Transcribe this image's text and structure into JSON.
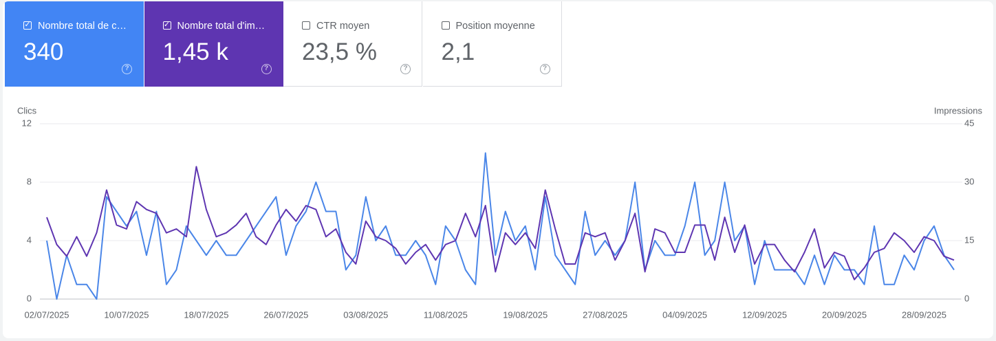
{
  "cards": [
    {
      "label": "Nombre total de c…",
      "value": "340",
      "checked": true,
      "color": "#4285f4"
    },
    {
      "label": "Nombre total d'im…",
      "value": "1,45 k",
      "checked": true,
      "color": "#5e35b1"
    },
    {
      "label": "CTR moyen",
      "value": "23,5 %",
      "checked": false,
      "color": "#ffffff"
    },
    {
      "label": "Position moyenne",
      "value": "2,1",
      "checked": false,
      "color": "#ffffff"
    }
  ],
  "chart_data": {
    "type": "line",
    "x": [
      "02/07/2025",
      "03/07/2025",
      "04/07/2025",
      "05/07/2025",
      "06/07/2025",
      "07/07/2025",
      "08/07/2025",
      "09/07/2025",
      "10/07/2025",
      "11/07/2025",
      "12/07/2025",
      "13/07/2025",
      "14/07/2025",
      "15/07/2025",
      "16/07/2025",
      "17/07/2025",
      "18/07/2025",
      "19/07/2025",
      "20/07/2025",
      "21/07/2025",
      "22/07/2025",
      "23/07/2025",
      "24/07/2025",
      "25/07/2025",
      "26/07/2025",
      "27/07/2025",
      "28/07/2025",
      "29/07/2025",
      "30/07/2025",
      "31/07/2025",
      "01/08/2025",
      "02/08/2025",
      "03/08/2025",
      "04/08/2025",
      "05/08/2025",
      "06/08/2025",
      "07/08/2025",
      "08/08/2025",
      "09/08/2025",
      "10/08/2025",
      "11/08/2025",
      "12/08/2025",
      "13/08/2025",
      "14/08/2025",
      "15/08/2025",
      "16/08/2025",
      "17/08/2025",
      "18/08/2025",
      "19/08/2025",
      "20/08/2025",
      "21/08/2025",
      "22/08/2025",
      "23/08/2025",
      "24/08/2025",
      "25/08/2025",
      "26/08/2025",
      "27/08/2025",
      "28/08/2025",
      "29/08/2025",
      "30/08/2025",
      "31/08/2025",
      "01/09/2025",
      "02/09/2025",
      "03/09/2025",
      "04/09/2025",
      "05/09/2025",
      "06/09/2025",
      "07/09/2025",
      "08/09/2025",
      "09/09/2025",
      "10/09/2025",
      "11/09/2025",
      "12/09/2025",
      "13/09/2025",
      "14/09/2025",
      "15/09/2025",
      "16/09/2025",
      "17/09/2025",
      "18/09/2025",
      "19/09/2025",
      "20/09/2025",
      "21/09/2025",
      "22/09/2025",
      "23/09/2025",
      "24/09/2025",
      "25/09/2025",
      "26/09/2025",
      "27/09/2025",
      "28/09/2025",
      "29/09/2025",
      "30/09/2025",
      "01/10/2025"
    ],
    "xticks": [
      "02/07/2025",
      "10/07/2025",
      "18/07/2025",
      "26/07/2025",
      "03/08/2025",
      "11/08/2025",
      "19/08/2025",
      "27/08/2025",
      "04/09/2025",
      "12/09/2025",
      "20/09/2025",
      "28/09/2025"
    ],
    "series": [
      {
        "name": "Clics",
        "color": "#4a86e8",
        "values": [
          4,
          0,
          3,
          1,
          1,
          0,
          7,
          6,
          5,
          6,
          3,
          6,
          1,
          2,
          5,
          4,
          3,
          4,
          3,
          3,
          4,
          5,
          6,
          7,
          3,
          5,
          6,
          8,
          6,
          6,
          2,
          3,
          7,
          4,
          5,
          3,
          3,
          4,
          3,
          1,
          5,
          4,
          2,
          1,
          10,
          3,
          6,
          4,
          5,
          2,
          7,
          3,
          2,
          1,
          6,
          3,
          4,
          3,
          4,
          8,
          2,
          4,
          3,
          3,
          5,
          8,
          3,
          4,
          8,
          4,
          5,
          1,
          4,
          2,
          2,
          2,
          1,
          3,
          1,
          3,
          2,
          2,
          1,
          5,
          1,
          1,
          3,
          2,
          4,
          5,
          3,
          2
        ]
      },
      {
        "name": "Impressions",
        "color": "#5e35b1",
        "axis": "y2",
        "values": [
          21,
          14,
          11,
          16,
          11,
          17,
          28,
          19,
          18,
          25,
          23,
          22,
          17,
          18,
          16,
          34,
          23,
          16,
          17,
          19,
          22,
          16,
          14,
          19,
          23,
          20,
          24,
          23,
          16,
          18,
          12,
          9,
          20,
          16,
          15,
          13,
          9,
          12,
          14,
          10,
          14,
          15,
          22,
          16,
          24,
          7,
          17,
          14,
          17,
          13,
          28,
          18,
          9,
          9,
          17,
          16,
          17,
          10,
          15,
          22,
          7,
          18,
          17,
          12,
          12,
          19,
          19,
          10,
          21,
          12,
          19,
          9,
          14,
          14,
          10,
          7,
          12,
          18,
          8,
          12,
          11,
          5,
          8,
          12,
          13,
          17,
          15,
          12,
          16,
          15,
          11,
          10
        ]
      }
    ],
    "ylim": [
      0,
      12
    ],
    "yticks": [
      0,
      4,
      8,
      12
    ],
    "y2lim": [
      0,
      45
    ],
    "y2ticks": [
      0,
      15,
      30,
      45
    ],
    "grid": true
  }
}
